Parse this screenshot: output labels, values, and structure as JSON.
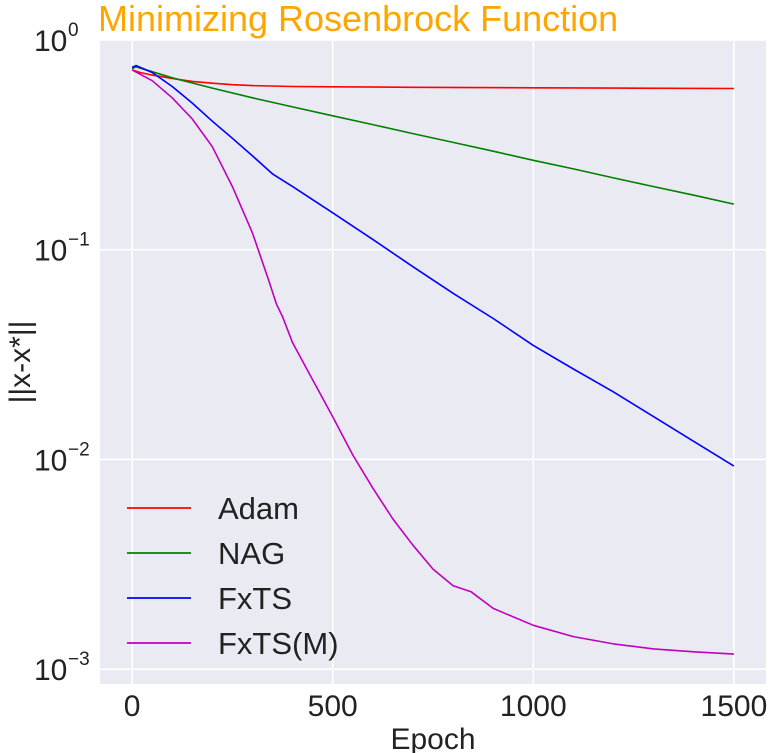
{
  "chart_data": {
    "type": "line",
    "title": "Minimizing Rosenbrock Function",
    "title_color": "#FFA500",
    "xlabel": "Epoch",
    "ylabel": "||x-x*||",
    "xscale": "linear",
    "yscale": "log",
    "xlim": [
      -80,
      1580
    ],
    "ylim": [
      0.00085,
      1.0
    ],
    "xticks": [
      0,
      500,
      1000,
      1500
    ],
    "xtick_labels": [
      "0",
      "500",
      "1000",
      "1500"
    ],
    "yticks": [
      0.001,
      0.01,
      0.1,
      1
    ],
    "ytick_labels": [
      {
        "base": "10",
        "exp": "−3"
      },
      {
        "base": "10",
        "exp": "−2"
      },
      {
        "base": "10",
        "exp": "−1"
      },
      {
        "base": "10",
        "exp": "0"
      }
    ],
    "grid": true,
    "plot_background": "#EAEAF2",
    "legend_position": "lower-left",
    "series": [
      {
        "name": "Adam",
        "color": "#FF0000",
        "x": [
          0,
          20,
          50,
          100,
          150,
          200,
          250,
          300,
          400,
          500,
          700,
          1000,
          1200,
          1500
        ],
        "y": [
          0.72,
          0.7,
          0.68,
          0.655,
          0.635,
          0.622,
          0.612,
          0.606,
          0.6,
          0.598,
          0.595,
          0.592,
          0.59,
          0.587
        ]
      },
      {
        "name": "NAG",
        "color": "#008000",
        "x": [
          0,
          10,
          100,
          200,
          300,
          400,
          500,
          600,
          700,
          800,
          900,
          1000,
          1100,
          1200,
          1300,
          1400,
          1500
        ],
        "y": [
          0.73,
          0.745,
          0.66,
          0.59,
          0.53,
          0.48,
          0.435,
          0.395,
          0.358,
          0.325,
          0.295,
          0.267,
          0.243,
          0.22,
          0.2,
          0.182,
          0.165
        ]
      },
      {
        "name": "FxTS",
        "color": "#0000FF",
        "x": [
          0,
          10,
          50,
          100,
          150,
          200,
          250,
          300,
          350,
          400,
          500,
          600,
          700,
          800,
          900,
          1000,
          1100,
          1200,
          1300,
          1400,
          1500
        ],
        "y": [
          0.74,
          0.755,
          0.7,
          0.6,
          0.5,
          0.41,
          0.34,
          0.28,
          0.23,
          0.2,
          0.15,
          0.112,
          0.083,
          0.062,
          0.047,
          0.035,
          0.027,
          0.021,
          0.016,
          0.0122,
          0.0093
        ]
      },
      {
        "name": "FxTS(M)",
        "color": "#BF00BF",
        "x": [
          0,
          50,
          100,
          150,
          200,
          250,
          300,
          340,
          360,
          375,
          400,
          450,
          500,
          550,
          600,
          650,
          700,
          750,
          800,
          845,
          900,
          1000,
          1100,
          1200,
          1300,
          1400,
          1500
        ],
        "y": [
          0.72,
          0.64,
          0.53,
          0.42,
          0.31,
          0.2,
          0.12,
          0.072,
          0.055,
          0.048,
          0.036,
          0.024,
          0.016,
          0.0105,
          0.0073,
          0.0052,
          0.0039,
          0.003,
          0.0025,
          0.00234,
          0.00195,
          0.00162,
          0.00143,
          0.00132,
          0.00125,
          0.00121,
          0.00118
        ]
      }
    ]
  }
}
